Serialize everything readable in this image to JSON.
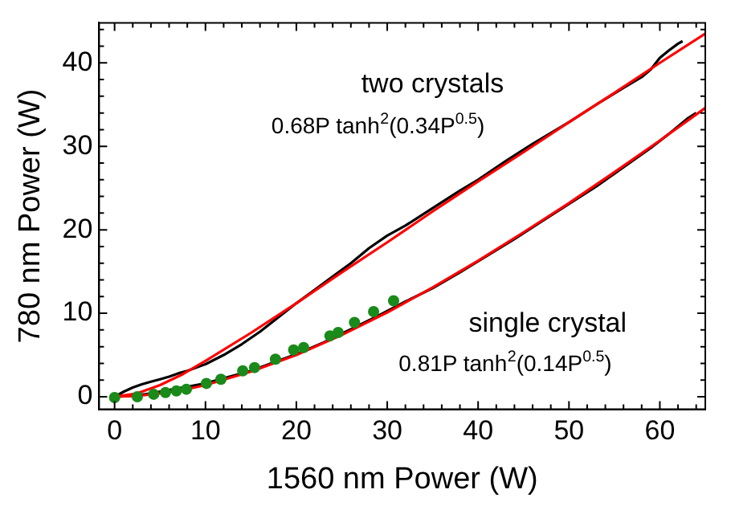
{
  "chart_data": {
    "type": "line",
    "xlabel": "1560 nm Power (W)",
    "ylabel": "780 nm Power (W)",
    "xlim": [
      -1.7,
      65
    ],
    "ylim": [
      -1.5,
      44.8
    ],
    "xticks": [
      0,
      {
        "value": 2,
        "label": null
      },
      {
        "value": 4,
        "label": null
      },
      {
        "value": 6,
        "label": null
      },
      {
        "value": 8,
        "label": null
      },
      10,
      {
        "value": 12,
        "label": null
      },
      {
        "value": 14,
        "label": null
      },
      {
        "value": 16,
        "label": null
      },
      {
        "value": 18,
        "label": null
      },
      20,
      {
        "value": 22,
        "label": null
      },
      {
        "value": 24,
        "label": null
      },
      {
        "value": 26,
        "label": null
      },
      {
        "value": 28,
        "label": null
      },
      30,
      {
        "value": 32,
        "label": null
      },
      {
        "value": 34,
        "label": null
      },
      {
        "value": 36,
        "label": null
      },
      {
        "value": 38,
        "label": null
      },
      40,
      {
        "value": 42,
        "label": null
      },
      {
        "value": 44,
        "label": null
      },
      {
        "value": 46,
        "label": null
      },
      {
        "value": 48,
        "label": null
      },
      50,
      {
        "value": 52,
        "label": null
      },
      {
        "value": 54,
        "label": null
      },
      {
        "value": 56,
        "label": null
      },
      {
        "value": 58,
        "label": null
      },
      60,
      {
        "value": 62,
        "label": null
      },
      {
        "value": 64,
        "label": null
      }
    ],
    "yticks": [
      0,
      {
        "value": 2,
        "label": null
      },
      {
        "value": 4,
        "label": null
      },
      {
        "value": 6,
        "label": null
      },
      {
        "value": 8,
        "label": null
      },
      10,
      {
        "value": 12,
        "label": null
      },
      {
        "value": 14,
        "label": null
      },
      {
        "value": 16,
        "label": null
      },
      {
        "value": 18,
        "label": null
      },
      20,
      {
        "value": 22,
        "label": null
      },
      {
        "value": 24,
        "label": null
      },
      {
        "value": 26,
        "label": null
      },
      {
        "value": 28,
        "label": null
      },
      30,
      {
        "value": 32,
        "label": null
      },
      {
        "value": 34,
        "label": null
      },
      {
        "value": 36,
        "label": null
      },
      {
        "value": 38,
        "label": null
      },
      40,
      {
        "value": 42,
        "label": null
      },
      {
        "value": 44,
        "label": null
      }
    ],
    "grid": false,
    "legend": false,
    "series": [
      {
        "color": "#000000",
        "x": [
          0,
          1,
          2,
          3,
          4,
          5,
          6,
          7,
          8,
          10,
          12,
          14,
          16,
          18,
          20,
          22,
          24,
          26,
          28,
          30,
          32,
          35,
          38,
          40,
          43,
          46,
          50,
          53,
          56,
          58,
          59,
          60,
          61,
          62,
          62.5
        ],
        "values": [
          0,
          0.6,
          1.1,
          1.5,
          1.8,
          2.1,
          2.4,
          2.8,
          3.1,
          3.9,
          5.0,
          6.3,
          7.8,
          9.5,
          11.2,
          12.8,
          14.4,
          16.0,
          17.8,
          19.3,
          20.5,
          22.6,
          24.7,
          26.0,
          28.2,
          30.3,
          32.9,
          35.0,
          37.0,
          38.3,
          39.2,
          40.6,
          41.5,
          42.3,
          42.6
        ]
      },
      {
        "color": "#000000",
        "x": [
          0,
          2,
          4,
          6,
          8,
          10,
          12,
          15,
          18,
          20,
          23,
          26,
          29,
          32,
          35,
          38,
          41,
          44,
          47,
          50,
          53,
          56,
          59,
          61,
          63,
          64
        ],
        "values": [
          0,
          0.1,
          0.4,
          0.8,
          1.2,
          1.6,
          2.2,
          3.1,
          4.3,
          5.1,
          6.5,
          8.1,
          9.7,
          11.4,
          13.0,
          14.9,
          16.9,
          18.9,
          21.0,
          23.1,
          25.2,
          27.5,
          29.8,
          31.5,
          33.3,
          34.0
        ]
      },
      {
        "color": "#ff0000",
        "x": [
          0,
          2.5,
          5,
          7.5,
          10,
          15,
          20,
          25,
          30,
          35,
          40,
          45,
          50,
          55,
          60,
          65
        ],
        "values": [
          0,
          0.4,
          1.4,
          2.7,
          4.3,
          7.65,
          11.2,
          14.9,
          18.5,
          22.2,
          25.8,
          29.3,
          32.9,
          36.4,
          40.0,
          43.5
        ]
      },
      {
        "color": "#ff0000",
        "x": [
          0,
          2.5,
          5,
          7.5,
          10,
          15,
          20,
          25,
          30,
          35,
          40,
          45,
          50,
          55,
          60,
          65
        ],
        "values": [
          0,
          0.1,
          0.4,
          0.8,
          1.4,
          3.0,
          5.0,
          7.4,
          10.1,
          13.1,
          16.3,
          19.7,
          23.2,
          26.9,
          30.7,
          34.6
        ]
      },
      {
        "type": "scatter",
        "marker": "circle",
        "color": "#1a8a1a",
        "x": [
          0,
          2.5,
          4.3,
          5.6,
          6.8,
          7.9,
          10.1,
          11.7,
          14.1,
          15.4,
          17.7,
          19.7,
          20.8,
          23.7,
          24.6,
          26.4,
          28.5,
          30.7
        ],
        "values": [
          -0.1,
          0,
          0.3,
          0.5,
          0.7,
          0.9,
          1.6,
          2.1,
          3.1,
          3.5,
          4.5,
          5.6,
          5.9,
          7.3,
          7.7,
          8.9,
          10.2,
          11.5
        ]
      }
    ],
    "annotations": [
      "two crystals",
      "0.68P tanh$^{2}$(0.34P$^{0.5}$)",
      "single crystal",
      "0.81P tanh$^{2}$(0.14P$^{0.5}$)"
    ]
  }
}
